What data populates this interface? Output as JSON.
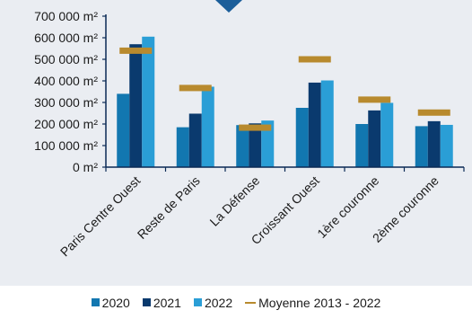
{
  "chart_data": {
    "type": "bar",
    "categories": [
      "Paris Centre Ouest",
      "Reste de Paris",
      "La Défense",
      "Croissant Ouest",
      "1ère couronne",
      "2ème couronne"
    ],
    "series": [
      {
        "name": "2020",
        "values": [
          340000,
          185000,
          195000,
          275000,
          200000,
          190000
        ],
        "color": "#1277b0"
      },
      {
        "name": "2021",
        "values": [
          570000,
          248000,
          203000,
          392000,
          263000,
          213000
        ],
        "color": "#0a3a6e"
      },
      {
        "name": "2022",
        "values": [
          605000,
          373000,
          216000,
          402000,
          298000,
          196000
        ],
        "color": "#2a9ed6"
      }
    ],
    "average": {
      "name": "Moyenne 2013 - 2022",
      "values": [
        540000,
        367000,
        183000,
        500000,
        313000,
        253000
      ],
      "color": "#b88a2e"
    },
    "yticks": [
      0,
      100000,
      200000,
      300000,
      400000,
      500000,
      600000,
      700000
    ],
    "ytick_labels": [
      "0 m²",
      "100 000 m²",
      "200 000 m²",
      "300 000 m²",
      "400 000 m²",
      "500 000 m²",
      "600 000 m²",
      "700 000 m²"
    ],
    "ylim": [
      0,
      700000
    ],
    "title": "",
    "xlabel": "",
    "ylabel": "",
    "grid": false,
    "legend_position": "bottom"
  },
  "legend": {
    "items": [
      {
        "label": "2020",
        "kind": "box",
        "color": "#1277b0"
      },
      {
        "label": "2021",
        "kind": "box",
        "color": "#0a3a6e"
      },
      {
        "label": "2022",
        "kind": "box",
        "color": "#2a9ed6"
      },
      {
        "label": "Moyenne 2013 - 2022",
        "kind": "dash",
        "color": "#b88a2e"
      }
    ]
  },
  "colors": {
    "background": "#eaedf2",
    "marker": "#1b5e9a",
    "axis": "#0a2a55"
  }
}
